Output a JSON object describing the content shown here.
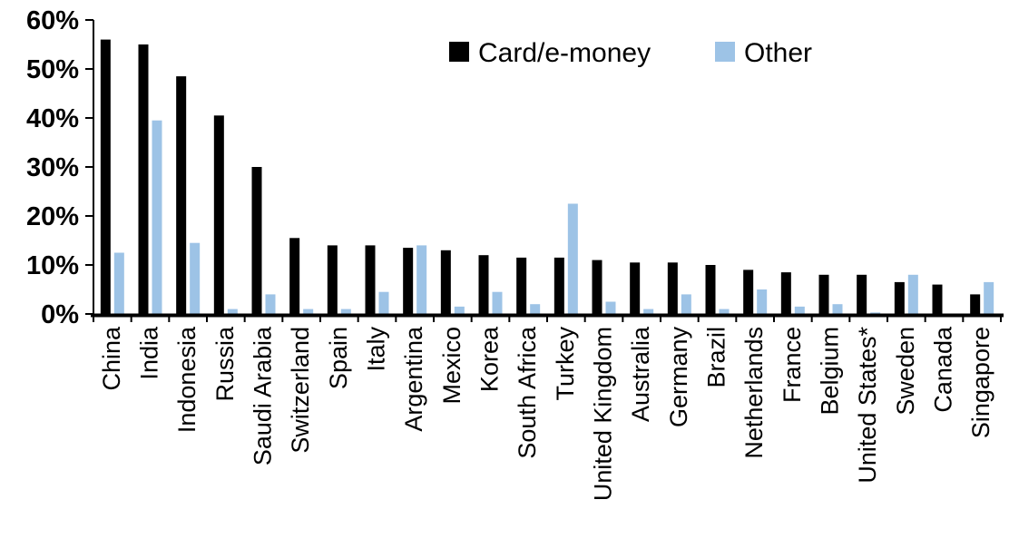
{
  "page": {
    "background": "#ffffff"
  },
  "chart_data": {
    "type": "bar",
    "title": "",
    "xlabel": "",
    "ylabel": "",
    "categories": [
      "China",
      "India",
      "Indonesia",
      "Russia",
      "Saudi Arabia",
      "Switzerland",
      "Spain",
      "Italy",
      "Argentina",
      "Mexico",
      "Korea",
      "South Africa",
      "Turkey",
      "United Kingdom",
      "Australia",
      "Germany",
      "Brazil",
      "Netherlands",
      "France",
      "Belgium",
      "United States*",
      "Sweden",
      "Canada",
      "Singapore"
    ],
    "series": [
      {
        "name": "Card/e-money",
        "color": "#000000",
        "values": [
          56,
          55,
          48.5,
          40.5,
          30,
          15.5,
          14,
          14,
          13.5,
          13,
          12,
          11.5,
          11.5,
          11,
          10.5,
          10.5,
          10,
          9,
          8.5,
          8,
          8,
          6.5,
          6,
          4
        ]
      },
      {
        "name": "Other",
        "color": "#9DC3E6",
        "values": [
          12.5,
          39.5,
          14.5,
          1,
          4,
          1,
          1,
          4.5,
          14,
          1.5,
          4.5,
          2,
          22.5,
          2.5,
          1,
          4,
          1,
          5,
          1.5,
          2,
          0.3,
          8,
          0,
          6.5
        ]
      }
    ],
    "ylim": [
      0,
      60
    ],
    "ytick_labels": [
      "0%",
      "10%",
      "20%",
      "30%",
      "40%",
      "50%",
      "60%"
    ],
    "ytick_values": [
      0,
      10,
      20,
      30,
      40,
      50,
      60
    ],
    "x_label_rotation": -90,
    "grid": false,
    "legend_position": "top-center",
    "axis_color": "#000000"
  }
}
